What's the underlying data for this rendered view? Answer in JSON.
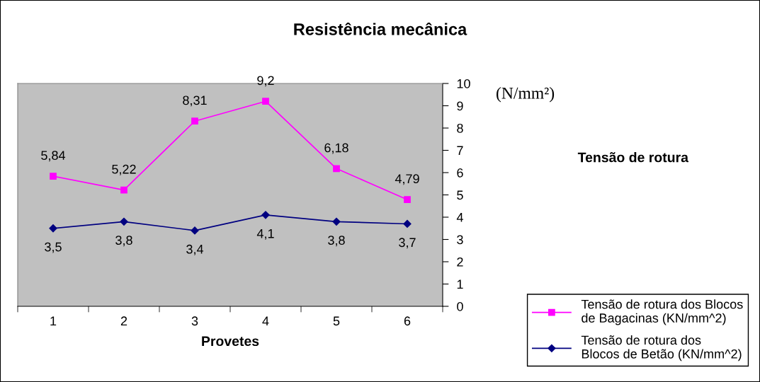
{
  "chart_data": {
    "type": "line",
    "title": "Resistência mecânica",
    "xlabel": "Provetes",
    "ylabel": "(N/mm²)",
    "annotations": [
      "Tensão de rotura"
    ],
    "categories": [
      "1",
      "2",
      "3",
      "4",
      "5",
      "6"
    ],
    "series": [
      {
        "name": "Tensão de rotura dos Blocos de Bagacinas (KN/mm^2)",
        "color": "#ff00ff",
        "marker": "square",
        "values": [
          5.84,
          5.22,
          8.31,
          9.2,
          6.18,
          4.79
        ],
        "value_labels": [
          "5,84",
          "5,22",
          "8,31",
          "9,2",
          "6,18",
          "4,79"
        ]
      },
      {
        "name": "Tensão de rotura dos Blocos de Betão (KN/mm^2)",
        "color": "#000080",
        "marker": "diamond",
        "values": [
          3.5,
          3.8,
          3.4,
          4.1,
          3.8,
          3.7
        ],
        "value_labels": [
          "3,5",
          "3,8",
          "3,4",
          "4,1",
          "3,8",
          "3,7"
        ]
      }
    ],
    "ylim": [
      0,
      10
    ],
    "yticks": [
      0,
      1,
      2,
      3,
      4,
      5,
      6,
      7,
      8,
      9,
      10
    ],
    "grid": false,
    "legend": "bottom right",
    "line_style": "solid"
  }
}
